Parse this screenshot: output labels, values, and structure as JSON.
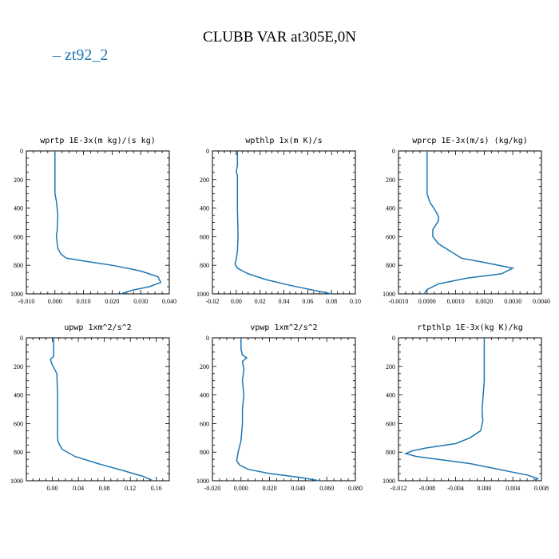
{
  "title": "CLUBB VAR at305E,0N",
  "legend": {
    "dash": "–",
    "label": "zt92_2",
    "color": "#1f77b4"
  },
  "chart_data": [
    {
      "type": "line",
      "title": "wprtp  1E-3x(m kg)/(s kg)",
      "xlim": [
        -0.01,
        0.04
      ],
      "ylim": [
        1000,
        0
      ],
      "xticks": [
        "-0.010",
        "0.000",
        "0.010",
        "0.020",
        "0.030",
        "0.040"
      ],
      "xtick_values": [
        -0.01,
        0.0,
        0.01,
        0.02,
        0.03,
        0.04
      ],
      "yticks": [
        "0",
        "200",
        "400",
        "600",
        "800",
        "1000"
      ],
      "ytick_values": [
        0,
        200,
        400,
        600,
        800,
        1000
      ],
      "series": [
        {
          "name": "zt92_2",
          "color": "#1f77b4",
          "x": [
            0.0,
            0.0,
            0.0,
            0.0,
            0.0005,
            0.001,
            0.0008,
            0.0005,
            0.001,
            0.002,
            0.004,
            0.01,
            0.02,
            0.03,
            0.036,
            0.037,
            0.033,
            0.027,
            0.023
          ],
          "y": [
            0,
            100,
            200,
            300,
            350,
            450,
            550,
            600,
            680,
            720,
            750,
            770,
            800,
            840,
            880,
            920,
            950,
            975,
            1000
          ]
        }
      ]
    },
    {
      "type": "line",
      "title": "wpthlp  1x(m K)/s",
      "xlim": [
        -0.02,
        0.1
      ],
      "ylim": [
        1000,
        0
      ],
      "xticks": [
        "-0.02",
        "0.00",
        "0.02",
        "0.04",
        "0.06",
        "0.08",
        "0.10"
      ],
      "xtick_values": [
        -0.02,
        0.0,
        0.02,
        0.04,
        0.06,
        0.08,
        0.1
      ],
      "yticks": [
        "0",
        "200",
        "400",
        "600",
        "800",
        "1000"
      ],
      "ytick_values": [
        0,
        200,
        400,
        600,
        800,
        1000
      ],
      "series": [
        {
          "name": "zt92_2",
          "color": "#1f77b4",
          "x": [
            0.001,
            0.001,
            0.0,
            0.001,
            0.001,
            0.001,
            0.0015,
            0.001,
            0.0,
            -0.001,
            0.001,
            0.01,
            0.025,
            0.045,
            0.065,
            0.08
          ],
          "y": [
            0,
            100,
            150,
            170,
            200,
            400,
            600,
            700,
            760,
            790,
            820,
            860,
            900,
            940,
            975,
            1000
          ]
        }
      ]
    },
    {
      "type": "line",
      "title": "wprcp  1E-3x(m/s) (kg/kg)",
      "xlim": [
        -0.001,
        0.004
      ],
      "ylim": [
        1000,
        0
      ],
      "xticks": [
        "-0.0010",
        "0.0000",
        "0.0010",
        "0.0020",
        "0.0030",
        "0.0040"
      ],
      "xtick_values": [
        -0.001,
        0.0,
        0.001,
        0.002,
        0.003,
        0.004
      ],
      "yticks": [
        "0",
        "200",
        "400",
        "600",
        "800",
        "1000"
      ],
      "ytick_values": [
        0,
        200,
        400,
        600,
        800,
        1000
      ],
      "series": [
        {
          "name": "zt92_2",
          "color": "#1f77b4",
          "x": [
            0.0,
            0.0,
            0.0,
            0.0001,
            0.0003,
            0.0004,
            0.0004,
            0.0002,
            0.0002,
            0.0004,
            0.0008,
            0.0012,
            0.002,
            0.003,
            0.0026,
            0.0014,
            0.0004,
            0.0,
            -0.0001
          ],
          "y": [
            0,
            100,
            300,
            360,
            420,
            460,
            490,
            550,
            600,
            650,
            700,
            750,
            780,
            820,
            860,
            890,
            930,
            970,
            1000
          ]
        }
      ]
    },
    {
      "type": "line",
      "title": "upwp  1xm^2/s^2",
      "xlim": [
        -0.04,
        0.18
      ],
      "ylim": [
        1000,
        0
      ],
      "xticks": [
        "0.00",
        "0.04",
        "0.08",
        "0.12",
        "0.16"
      ],
      "xtick_values": [
        0.0,
        0.04,
        0.08,
        0.12,
        0.16
      ],
      "yticks": [
        "0",
        "200",
        "400",
        "600",
        "800",
        "1000"
      ],
      "ytick_values": [
        0,
        200,
        400,
        600,
        800,
        1000
      ],
      "series": [
        {
          "name": "zt92_2",
          "color": "#1f77b4",
          "x": [
            0.002,
            0.002,
            0.002,
            -0.003,
            0.0,
            0.007,
            0.008,
            0.008,
            0.008,
            0.009,
            0.015,
            0.035,
            0.07,
            0.11,
            0.14,
            0.155
          ],
          "y": [
            0,
            80,
            130,
            150,
            190,
            250,
            400,
            600,
            700,
            730,
            780,
            830,
            880,
            930,
            970,
            1000
          ]
        }
      ]
    },
    {
      "type": "line",
      "title": "vpwp  1xm^2/s^2",
      "xlim": [
        -0.02,
        0.08
      ],
      "ylim": [
        1000,
        0
      ],
      "xticks": [
        "-0.020",
        "0.000",
        "0.020",
        "0.040",
        "0.060",
        "0.080"
      ],
      "xtick_values": [
        -0.02,
        0.0,
        0.02,
        0.04,
        0.06,
        0.08
      ],
      "yticks": [
        "0",
        "200",
        "400",
        "600",
        "800",
        "1000"
      ],
      "ytick_values": [
        0,
        200,
        400,
        600,
        800,
        1000
      ],
      "series": [
        {
          "name": "zt92_2",
          "color": "#1f77b4",
          "x": [
            0.0,
            0.0,
            0.001,
            0.004,
            0.001,
            0.002,
            0.001,
            0.002,
            0.001,
            0.001,
            0.0,
            -0.002,
            -0.003,
            -0.001,
            0.005,
            0.02,
            0.04,
            0.055
          ],
          "y": [
            0,
            80,
            120,
            140,
            165,
            220,
            300,
            400,
            500,
            600,
            720,
            800,
            860,
            890,
            920,
            950,
            975,
            1000
          ]
        }
      ]
    },
    {
      "type": "line",
      "title": "rtpthlp  1E-3x(kg K)/kg",
      "xlim": [
        -0.012,
        0.008
      ],
      "ylim": [
        1000,
        0
      ],
      "xticks": [
        "-0.012",
        "-0.008",
        "-0.004",
        "0.000",
        "0.004",
        "0.008"
      ],
      "xtick_values": [
        -0.012,
        -0.008,
        -0.004,
        0.0,
        0.004,
        0.008
      ],
      "yticks": [
        "0",
        "200",
        "400",
        "600",
        "800",
        "1000"
      ],
      "ytick_values": [
        0,
        200,
        400,
        600,
        800,
        1000
      ],
      "series": [
        {
          "name": "zt92_2",
          "color": "#1f77b4",
          "x": [
            0.0,
            0.0,
            0.0,
            -0.0003,
            -0.0002,
            -0.0005,
            -0.002,
            -0.004,
            -0.008,
            -0.01,
            -0.011,
            -0.0095,
            -0.002,
            0.003,
            0.006,
            0.0075,
            0.007
          ],
          "y": [
            0,
            100,
            300,
            500,
            580,
            650,
            700,
            740,
            770,
            790,
            810,
            830,
            880,
            930,
            960,
            985,
            1000
          ]
        }
      ]
    }
  ]
}
